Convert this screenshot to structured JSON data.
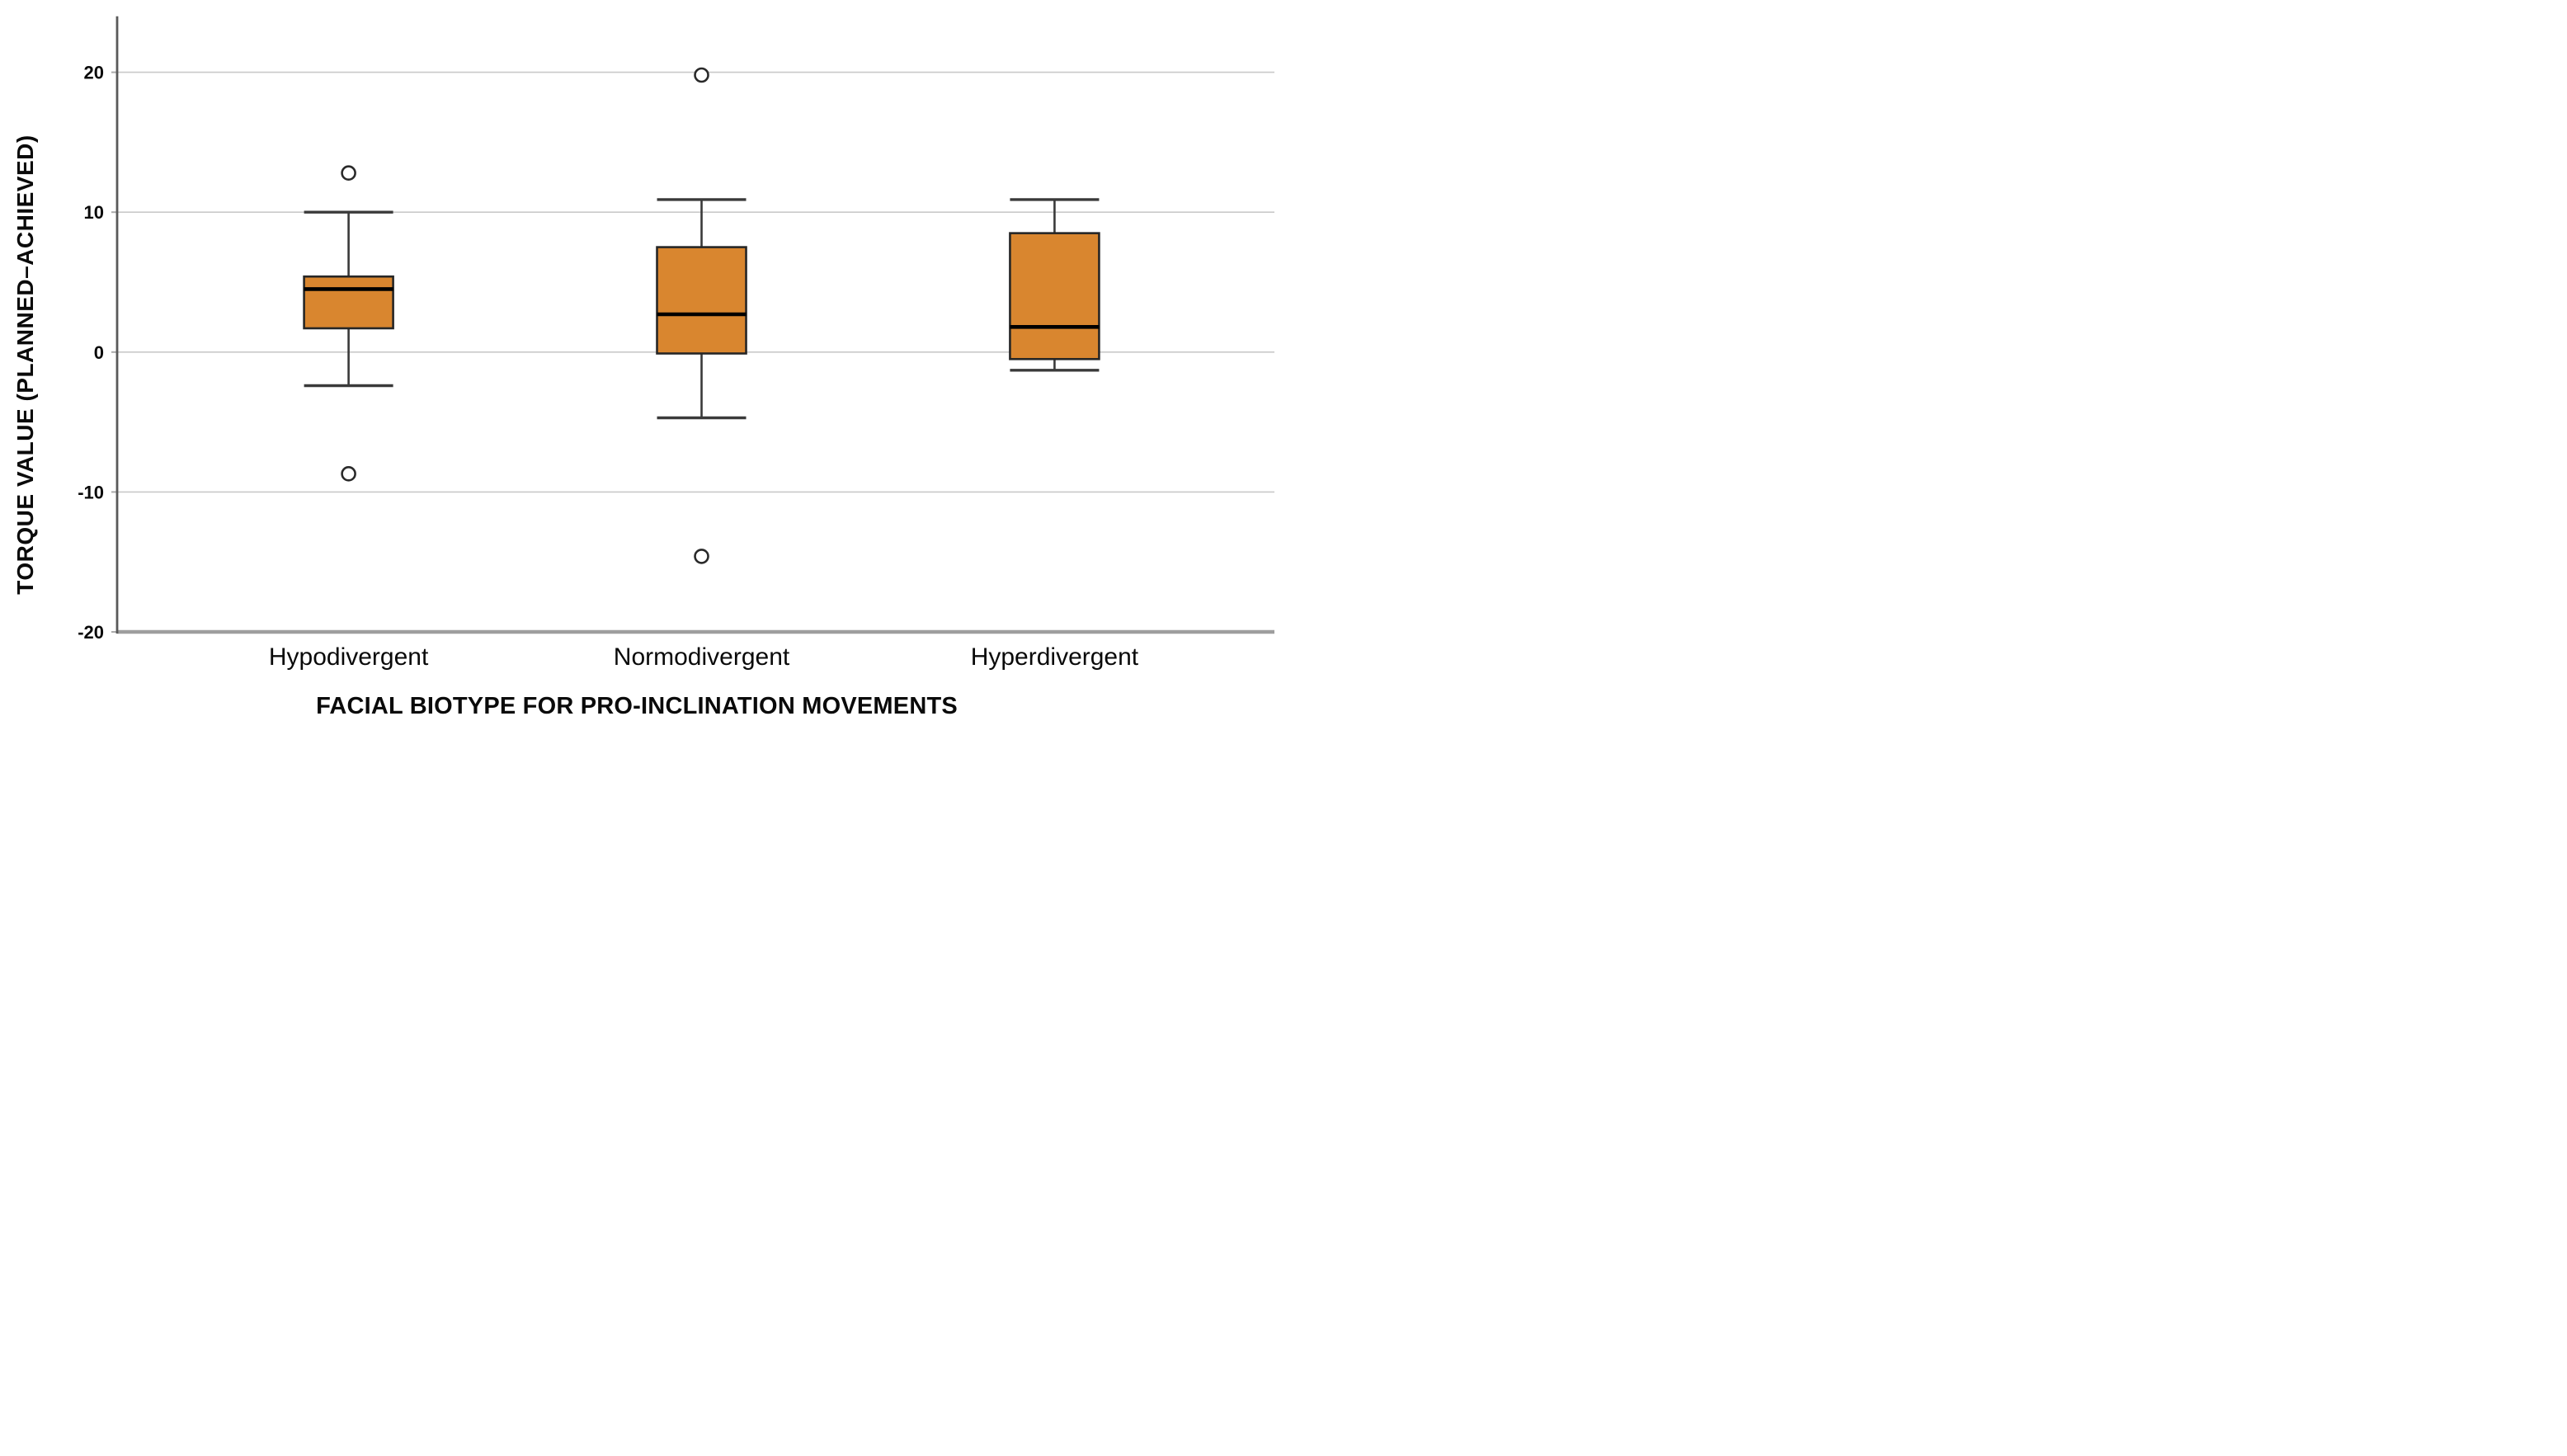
{
  "figure": {
    "background": "#ffffff"
  },
  "chart_data": {
    "type": "boxplot",
    "title": "",
    "xlabel": "FACIAL BIOTYPE FOR PRO-INCLINATION MOVEMENTS",
    "ylabel": "TORQUE VALUE (PLANNED–ACHIEVED)",
    "categories": [
      "Hypodivergent",
      "Normodivergent",
      "Hyperdivergent"
    ],
    "ylim": [
      -20,
      24
    ],
    "yticks": [
      20,
      10,
      0,
      -10,
      -20
    ],
    "ytick_labels": [
      "20",
      "10",
      "0",
      "-10",
      "-20"
    ],
    "grid": "horizontal",
    "legend": "none",
    "series": [
      {
        "name": "Hypodivergent",
        "whisker_low": -2.4,
        "q1": 1.7,
        "median": 4.5,
        "q3": 5.4,
        "whisker_high": 10.0,
        "outliers": [
          12.8,
          -8.7
        ]
      },
      {
        "name": "Normodivergent",
        "whisker_low": -4.7,
        "q1": -0.1,
        "median": 2.7,
        "q3": 7.5,
        "whisker_high": 10.9,
        "outliers": [
          19.8,
          -14.6
        ]
      },
      {
        "name": "Hyperdivergent",
        "whisker_low": -1.3,
        "q1": -0.5,
        "median": 1.8,
        "q3": 8.5,
        "whisker_high": 10.9,
        "outliers": []
      }
    ],
    "colors": {
      "box_fill": "#D9862F",
      "box_border": "#262626",
      "median_line": "#000000",
      "whisker": "#3a3a3a",
      "gridline": "#c9c9c9",
      "axis_line": "#595959",
      "baseline": "#9e9e9e",
      "tick_mark": "#aaaaaa",
      "outlier_stroke": "#2a2a2a",
      "text": "#0a0a0a"
    }
  }
}
